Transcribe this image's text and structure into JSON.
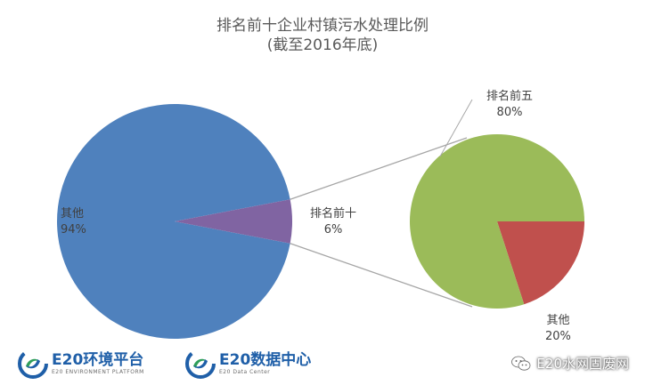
{
  "chart_data": {
    "type": "pie",
    "subtype": "pie-of-pie",
    "title": "排名前十企业村镇污水处理比例",
    "subtitle": "(截至2016年底)",
    "main_pie": [
      {
        "label": "其他",
        "value": 94,
        "display": "94%",
        "color": "#4f81bd"
      },
      {
        "label": "排名前十",
        "value": 6,
        "display": "6%",
        "color": "#8064a2"
      }
    ],
    "secondary_pie": [
      {
        "label": "排名前五",
        "value": 80,
        "display": "80%",
        "color": "#9bbb59"
      },
      {
        "label": "其他",
        "value": 20,
        "display": "20%",
        "color": "#c0504d"
      }
    ],
    "connector_color": "#a6a6a6"
  },
  "logos": {
    "platform_name": "E20环境平台",
    "platform_sub": "E20 ENVIRONMENT PLATFORM",
    "data_center_name": "E20数据中心",
    "data_center_sub": "E20 Data Center",
    "accent_blue": "#1f5fa8",
    "accent_green": "#2f9e5a"
  },
  "watermark": {
    "text": "E20水网固废网",
    "icon": "wechat-icon"
  }
}
